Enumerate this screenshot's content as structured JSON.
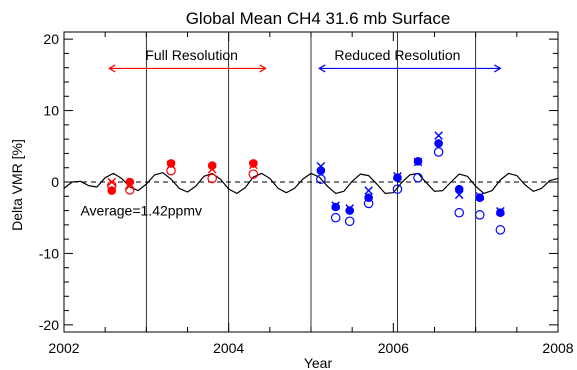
{
  "chart_data": {
    "type": "scatter",
    "title": "Global Mean CH4 31.6 mb Surface",
    "xlabel": "Year",
    "ylabel": "Delta VMR [%]",
    "xlim": [
      2002,
      2008
    ],
    "ylim": [
      -21,
      21
    ],
    "x_ticks": [
      2002,
      2004,
      2006,
      2008
    ],
    "x_tick_labels": [
      "2002",
      "2004",
      "2006",
      "2008"
    ],
    "y_ticks": [
      -20,
      -10,
      0,
      10,
      20
    ],
    "y_tick_labels": [
      "-20",
      "-10",
      "0",
      "10",
      "20"
    ],
    "x_minor_step": 0.5,
    "y_minor_step": 2,
    "vertical_lines": [
      2003.0,
      2004.0,
      2005.0,
      2006.05,
      2007.0
    ],
    "zero_line_dashed": true,
    "annotations": [
      {
        "text": "Full Resolution",
        "x": 2003.55,
        "y": 17.8,
        "color": "#ff0000"
      },
      {
        "text": "Reduced Resolution",
        "x": 2006.05,
        "y": 17.8,
        "color": "#0000ff"
      },
      {
        "text": "Average=1.42ppmv",
        "x": 2002.2,
        "y": -4.0,
        "color": "#000000"
      }
    ],
    "arrows": [
      {
        "from": 2002.55,
        "to": 2004.45,
        "y": 15.9,
        "color": "#ff0000"
      },
      {
        "from": 2005.1,
        "to": 2007.3,
        "y": 15.9,
        "color": "#0000ff"
      }
    ],
    "colors": {
      "full": "#ff0000",
      "reduced": "#0000ff",
      "curve": "#000000"
    },
    "series": [
      {
        "color": "#ff0000",
        "marker": "cross",
        "x": [
          2002.58,
          2002.8,
          2003.3,
          2003.8,
          2004.3
        ],
        "y": [
          0.0,
          -0.5,
          2.4,
          1.8,
          2.4
        ]
      },
      {
        "color": "#ff0000",
        "marker": "filled-circle",
        "x": [
          2002.58,
          2002.8,
          2003.3,
          2003.8,
          2004.3
        ],
        "y": [
          -1.2,
          0.0,
          2.6,
          2.3,
          2.6
        ]
      },
      {
        "color": "#ff0000",
        "marker": "open-circle",
        "x": [
          2002.58,
          2002.8,
          2003.3,
          2003.8,
          2004.3
        ],
        "y": [
          -0.5,
          -1.1,
          1.6,
          0.5,
          1.1
        ]
      },
      {
        "color": "#0000ff",
        "marker": "cross",
        "x": [
          2005.12,
          2005.3,
          2005.47,
          2005.7,
          2006.05,
          2006.3,
          2006.55,
          2006.8,
          2007.05,
          2007.3
        ],
        "y": [
          2.2,
          -3.3,
          -3.7,
          -1.2,
          0.8,
          2.8,
          6.5,
          -1.8,
          -2.0,
          -4.1
        ],
        "note": ""
      },
      {
        "color": "#0000ff",
        "marker": "filled-circle",
        "x": [
          2005.12,
          2005.3,
          2005.47,
          2005.7,
          2006.05,
          2006.3,
          2006.55,
          2006.8,
          2007.05,
          2007.3
        ],
        "y": [
          1.6,
          -3.5,
          -4.0,
          -2.2,
          0.6,
          2.9,
          5.4,
          -1.0,
          -2.2,
          -4.3
        ]
      },
      {
        "color": "#0000ff",
        "marker": "open-circle",
        "x": [
          2005.12,
          2005.3,
          2005.47,
          2005.7,
          2006.05,
          2006.3,
          2006.55,
          2006.8,
          2007.05,
          2007.3
        ],
        "y": [
          0.4,
          -5.0,
          -5.5,
          -3.0,
          -1.0,
          0.6,
          4.2,
          -4.3,
          -4.6,
          -6.7
        ]
      }
    ],
    "curve": {
      "color": "#000000",
      "x": [
        2002.0,
        2002.1,
        2002.2,
        2002.3,
        2002.4,
        2002.5,
        2002.6,
        2002.7,
        2002.8,
        2002.9,
        2003.0,
        2003.1,
        2003.2,
        2003.3,
        2003.4,
        2003.5,
        2003.6,
        2003.7,
        2003.8,
        2003.9,
        2004.0,
        2004.1,
        2004.2,
        2004.3,
        2004.4,
        2004.5,
        2004.6,
        2004.7,
        2004.8,
        2004.9,
        2005.0,
        2005.1,
        2005.2,
        2005.3,
        2005.4,
        2005.5,
        2005.6,
        2005.7,
        2005.8,
        2005.9,
        2006.0,
        2006.1,
        2006.2,
        2006.3,
        2006.4,
        2006.5,
        2006.6,
        2006.7,
        2006.8,
        2006.9,
        2007.0,
        2007.1,
        2007.2,
        2007.3,
        2007.4,
        2007.5,
        2007.6,
        2007.7,
        2007.8,
        2007.9,
        2008.0
      ],
      "y": [
        -0.9,
        0.0,
        0.1,
        -0.5,
        -0.7,
        0.6,
        1.2,
        0.5,
        -0.7,
        -1.2,
        -0.3,
        1.0,
        1.3,
        0.4,
        -0.9,
        -1.4,
        -0.6,
        0.8,
        1.2,
        0.4,
        -1.0,
        -1.6,
        -0.8,
        0.7,
        1.2,
        0.5,
        -0.9,
        -1.5,
        -0.9,
        0.4,
        1.2,
        0.7,
        -0.6,
        -1.6,
        -1.3,
        0.1,
        1.1,
        0.9,
        -0.3,
        -1.6,
        -1.5,
        -0.1,
        1.0,
        1.2,
        -0.1,
        -1.3,
        -1.2,
        0.0,
        1.1,
        0.8,
        -0.6,
        -1.6,
        -1.2,
        0.3,
        1.2,
        0.9,
        -0.4,
        -1.3,
        -0.9,
        0.2,
        0.5
      ]
    }
  }
}
